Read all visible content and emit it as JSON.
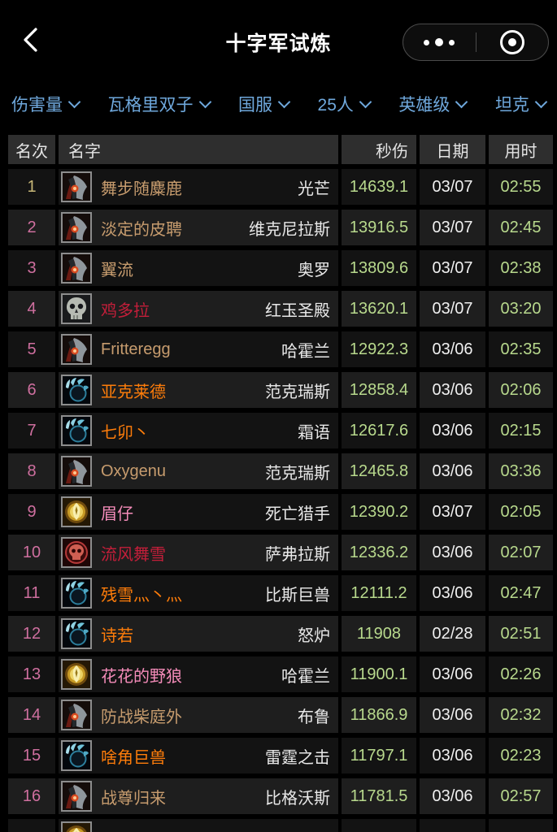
{
  "navbar": {
    "title": "十字军试炼",
    "back_icon": "chevron-left-icon",
    "more_icon": "more-dots-icon",
    "capsule_target_icon": "record-circle-icon"
  },
  "filters": [
    {
      "label": "伤害量"
    },
    {
      "label": "瓦格里双子"
    },
    {
      "label": "国服"
    },
    {
      "label": "25人"
    },
    {
      "label": "英雄级"
    },
    {
      "label": "坦克"
    }
  ],
  "table": {
    "headers": {
      "rank": "名次",
      "name": "名字",
      "dps": "秒伤",
      "date": "日期",
      "time": "用时"
    },
    "rows": [
      {
        "rank": "1",
        "icon": "warrior-class-icon",
        "class": "warrior",
        "name": "舞步随麋鹿",
        "server": "光芒",
        "dps": "14639.1",
        "date": "03/07",
        "time": "02:55"
      },
      {
        "rank": "2",
        "icon": "warrior-class-icon",
        "class": "warrior",
        "name": "淡定的皮聘",
        "server": "维克尼拉斯",
        "dps": "13916.5",
        "date": "03/07",
        "time": "02:45"
      },
      {
        "rank": "3",
        "icon": "warrior-class-icon",
        "class": "warrior",
        "name": "翼流",
        "server": "奥罗",
        "dps": "13809.6",
        "date": "03/07",
        "time": "02:38"
      },
      {
        "rank": "4",
        "icon": "deathknight-skull-icon",
        "class": "death_knight",
        "name": "鸡多拉",
        "server": "红玉圣殿",
        "dps": "13620.1",
        "date": "03/07",
        "time": "03:20"
      },
      {
        "rank": "5",
        "icon": "warrior-class-icon",
        "class": "warrior",
        "name": "Fritteregg",
        "server": "哈霍兰",
        "dps": "12922.3",
        "date": "03/06",
        "time": "02:35"
      },
      {
        "rank": "6",
        "icon": "druid-paw-icon",
        "class": "druid",
        "name": "亚克莱德",
        "server": "范克瑞斯",
        "dps": "12858.4",
        "date": "03/06",
        "time": "02:06"
      },
      {
        "rank": "7",
        "icon": "druid-paw-icon",
        "class": "druid",
        "name": "七卯丶",
        "server": "霜语",
        "dps": "12617.6",
        "date": "03/06",
        "time": "02:15"
      },
      {
        "rank": "8",
        "icon": "warrior-class-icon",
        "class": "warrior",
        "name": "Oxygenu",
        "server": "范克瑞斯",
        "dps": "12465.8",
        "date": "03/06",
        "time": "03:36"
      },
      {
        "rank": "9",
        "icon": "paladin-gold-icon",
        "class": "paladin",
        "name": "眉仔",
        "server": "死亡猎手",
        "dps": "12390.2",
        "date": "03/07",
        "time": "02:05"
      },
      {
        "rank": "10",
        "icon": "deathknight-blood-icon",
        "class": "death_knight",
        "name": "流风舞雪",
        "server": "萨弗拉斯",
        "dps": "12336.2",
        "date": "03/06",
        "time": "02:07"
      },
      {
        "rank": "11",
        "icon": "druid-paw-icon",
        "class": "druid",
        "name": "残雪灬丶灬",
        "server": "比斯巨兽",
        "dps": "12111.2",
        "date": "03/06",
        "time": "02:47"
      },
      {
        "rank": "12",
        "icon": "druid-paw-icon",
        "class": "druid",
        "name": "诗若",
        "server": "怒炉",
        "dps": "11908",
        "date": "02/28",
        "time": "02:51"
      },
      {
        "rank": "13",
        "icon": "paladin-gold-icon",
        "class": "paladin",
        "name": "花花的野狼",
        "server": "哈霍兰",
        "dps": "11900.1",
        "date": "03/06",
        "time": "02:26"
      },
      {
        "rank": "14",
        "icon": "warrior-class-icon",
        "class": "warrior",
        "name": "防战柴庭外",
        "server": "布鲁",
        "dps": "11866.9",
        "date": "03/06",
        "time": "02:32"
      },
      {
        "rank": "15",
        "icon": "druid-paw-icon",
        "class": "druid",
        "name": "啥角巨兽",
        "server": "雷霆之击",
        "dps": "11797.1",
        "date": "03/06",
        "time": "02:23"
      },
      {
        "rank": "16",
        "icon": "warrior-class-icon",
        "class": "warrior",
        "name": "战尊归来",
        "server": "比格沃斯",
        "dps": "11781.5",
        "date": "03/06",
        "time": "02:57"
      }
    ],
    "partial_row": {
      "rank": "",
      "icon": "paladin-gold-icon",
      "class": "paladin",
      "name": "",
      "server": "",
      "dps": "",
      "date": "",
      "time": ""
    }
  },
  "colors": {
    "filter_accent": "#6FA8DC",
    "rank_first": "#C8B878",
    "rank_default": "#CF6F9F",
    "dps_value": "#B8D98D",
    "time_value": "#B8D98D",
    "date_value": "#F0F0F0",
    "classes": {
      "warrior": "#C79C6E",
      "death_knight": "#C41E3A",
      "druid": "#FF7D0A",
      "paladin": "#F58CBA"
    }
  }
}
